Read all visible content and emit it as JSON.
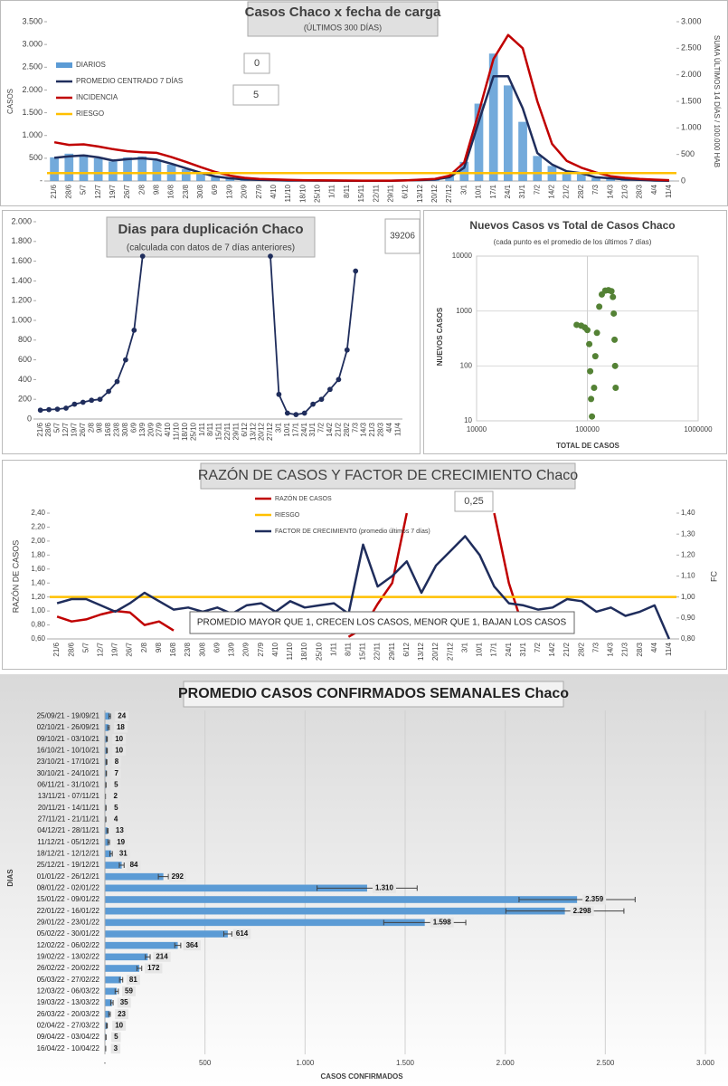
{
  "chart_data": [
    {
      "type": "combo",
      "title": "Casos Chaco x fecha de carga",
      "subtitle": "(ÚLTIMOS 300 DÍAS)",
      "y_label": "CASOS",
      "y2_label": "SUMA ÚLTIMOS 14 DÍAS / 100.000 HAB",
      "legend": "top-left",
      "categories": [
        "21/6",
        "28/6",
        "5/7",
        "12/7",
        "19/7",
        "26/7",
        "2/8",
        "9/8",
        "16/8",
        "23/8",
        "30/8",
        "6/9",
        "13/9",
        "20/9",
        "27/9",
        "4/10",
        "11/10",
        "18/10",
        "25/10",
        "1/11",
        "8/11",
        "15/11",
        "22/11",
        "29/11",
        "6/12",
        "13/12",
        "20/12",
        "27/12",
        "3/1",
        "10/1",
        "17/1",
        "24/1",
        "31/1",
        "7/2",
        "14/2",
        "21/2",
        "28/2",
        "7/3",
        "14/3",
        "21/3",
        "28/3",
        "4/4",
        "11/4"
      ],
      "series": [
        {
          "name": "DIARIOS",
          "kind": "bar",
          "color": "#5b9bd5",
          "values": [
            520,
            600,
            580,
            500,
            430,
            520,
            540,
            450,
            360,
            260,
            170,
            90,
            55,
            30,
            20,
            15,
            9,
            11,
            7,
            6,
            4,
            2,
            5,
            4,
            14,
            20,
            35,
            110,
            420,
            1700,
            2800,
            2100,
            1300,
            550,
            330,
            190,
            150,
            70,
            55,
            30,
            20,
            8,
            3
          ]
        },
        {
          "name": "PROMEDIO CENTRADO 7 DÍAS",
          "kind": "line",
          "color": "#1f2d5c",
          "values": [
            510,
            540,
            560,
            520,
            450,
            480,
            500,
            470,
            380,
            280,
            180,
            100,
            60,
            35,
            25,
            18,
            10,
            10,
            8,
            7,
            5,
            3,
            5,
            4,
            13,
            19,
            31,
            84,
            292,
            1310,
            2300,
            2300,
            1598,
            614,
            364,
            214,
            172,
            81,
            59,
            35,
            23,
            10,
            5
          ]
        },
        {
          "name": "INCIDENCIA",
          "kind": "line",
          "axis": "y2",
          "color": "#c00000",
          "values": [
            730,
            680,
            690,
            650,
            600,
            560,
            540,
            530,
            450,
            360,
            260,
            170,
            100,
            60,
            40,
            30,
            20,
            15,
            12,
            10,
            8,
            6,
            6,
            6,
            10,
            25,
            40,
            100,
            350,
            1300,
            2300,
            2750,
            2500,
            1500,
            700,
            380,
            250,
            160,
            90,
            60,
            40,
            25,
            15
          ]
        },
        {
          "name": "RIESGO",
          "kind": "hline",
          "axis": "y2",
          "color": "#ffc000",
          "value": 150
        }
      ],
      "ylim": [
        0,
        3500
      ],
      "yticks": [
        {
          "value": 0,
          "label": "-"
        },
        500,
        {
          "value": 1000,
          "label": "1.000"
        },
        {
          "value": 1500,
          "label": "1.500"
        },
        {
          "value": 2000,
          "label": "2.000"
        },
        {
          "value": 2500,
          "label": "2.500"
        },
        {
          "value": 3000,
          "label": "3.000"
        },
        {
          "value": 3500,
          "label": "3.500"
        }
      ],
      "y2lim": [
        0,
        3000
      ],
      "y2ticks": [
        0,
        500,
        {
          "value": 1000,
          "label": "1.000"
        },
        {
          "value": 1500,
          "label": "1.500"
        },
        {
          "value": 2000,
          "label": "2.000"
        },
        {
          "value": 2500,
          "label": "2.500"
        },
        {
          "value": 3000,
          "label": "3.000"
        }
      ],
      "annotations": [
        "0",
        "5"
      ]
    },
    {
      "type": "line",
      "title": "Dias para duplicación Chaco",
      "subtitle": "(calculada con datos de 7 días anteriores)",
      "categories": [
        "21/6",
        "28/6",
        "5/7",
        "12/7",
        "19/7",
        "26/7",
        "2/8",
        "9/8",
        "16/8",
        "23/8",
        "30/8",
        "6/9",
        "13/9",
        "20/9",
        "27/9",
        "4/10",
        "11/10",
        "18/10",
        "25/10",
        "1/11",
        "8/11",
        "15/11",
        "22/11",
        "29/11",
        "6/12",
        "13/12",
        "20/12",
        "27/12",
        "3/1",
        "10/1",
        "17/1",
        "24/1",
        "31/1",
        "7/2",
        "14/2",
        "21/2",
        "28/2",
        "7/3",
        "14/3",
        "21/3",
        "28/3",
        "4/4",
        "11/4"
      ],
      "series": [
        {
          "name": "DUPLICACIÓN",
          "kind": "line",
          "markers": true,
          "color": "#1f2d5c",
          "values": [
            90,
            95,
            100,
            110,
            150,
            170,
            190,
            200,
            280,
            380,
            600,
            900,
            1650,
            null,
            null,
            null,
            null,
            null,
            null,
            null,
            null,
            null,
            null,
            null,
            null,
            null,
            null,
            1650,
            250,
            60,
            45,
            60,
            150,
            200,
            300,
            400,
            700,
            1500,
            null,
            null,
            null,
            null,
            null
          ]
        }
      ],
      "ylim": [
        0,
        2000
      ],
      "yticks": [
        0,
        200,
        400,
        600,
        800,
        {
          "value": 1000,
          "label": "1.000"
        },
        {
          "value": 1200,
          "label": "1.200"
        },
        {
          "value": 1400,
          "label": "1.400"
        },
        {
          "value": 1600,
          "label": "1.600"
        },
        {
          "value": 1800,
          "label": "1.800"
        },
        {
          "value": 2000,
          "label": "2.000"
        }
      ],
      "annotations": [
        "39206"
      ]
    },
    {
      "type": "scatter",
      "title": "Nuevos Casos vs Total de Casos Chaco",
      "subtitle": "(cada punto es el promedio de los últimos 7 días)",
      "x_label": "TOTAL DE CASOS",
      "y_label": "NUEVOS CASOS",
      "xscale": "log",
      "yscale": "log",
      "grid": true,
      "color": "#548235",
      "x": [
        80000,
        88000,
        95000,
        100000,
        104000,
        106000,
        108000,
        110000,
        115000,
        118000,
        122000,
        128000,
        135000,
        145000,
        155000,
        165000,
        170000,
        173000,
        176000,
        178000,
        180000
      ],
      "values": [
        560,
        540,
        500,
        450,
        250,
        80,
        25,
        12,
        40,
        150,
        400,
        1200,
        2000,
        2350,
        2400,
        2300,
        1800,
        900,
        300,
        100,
        40
      ],
      "xlim": [
        10000,
        1000000
      ],
      "xticks": [
        10000,
        100000,
        1000000
      ],
      "ylim": [
        10,
        10000
      ],
      "yticks": [
        10,
        100,
        1000,
        10000
      ]
    },
    {
      "type": "line",
      "title": "RAZÓN DE CASOS Y FACTOR DE CRECIMIENTO Chaco",
      "y_label": "RAZÓN DE CASOS",
      "y2_label": "FC",
      "legend": "top-center",
      "categories": [
        "21/6",
        "28/6",
        "5/7",
        "12/7",
        "19/7",
        "26/7",
        "2/8",
        "9/8",
        "16/8",
        "23/8",
        "30/8",
        "6/9",
        "13/9",
        "20/9",
        "27/9",
        "4/10",
        "11/10",
        "18/10",
        "25/10",
        "1/11",
        "8/11",
        "15/11",
        "22/11",
        "29/11",
        "6/12",
        "13/12",
        "20/12",
        "27/12",
        "3/1",
        "10/1",
        "17/1",
        "24/1",
        "31/1",
        "7/2",
        "14/2",
        "21/2",
        "28/2",
        "7/3",
        "14/3",
        "21/3",
        "28/3",
        "4/4",
        "11/4"
      ],
      "series": [
        {
          "name": "RAZÓN DE CASOS",
          "kind": "line",
          "color": "#c00000",
          "values": [
            0.92,
            0.85,
            0.88,
            0.95,
            1.0,
            0.98,
            0.8,
            0.85,
            0.72,
            null,
            null,
            null,
            null,
            null,
            null,
            null,
            0.62,
            null,
            0.65,
            null,
            0.63,
            0.75,
            1.1,
            1.4,
            2.4,
            null,
            null,
            null,
            null,
            null,
            2.4,
            1.4,
            0.75,
            null,
            null,
            null,
            null,
            null,
            null,
            null,
            null,
            null,
            null
          ]
        },
        {
          "name": "RIESGO",
          "kind": "hline",
          "color": "#ffc000",
          "value": 1.2
        },
        {
          "name": "FACTOR DE CRECIMIENTO (promedio últimos 7 días)",
          "kind": "line",
          "axis": "y2",
          "color": "#1f2d5c",
          "values": [
            0.97,
            0.99,
            0.99,
            0.96,
            0.93,
            0.97,
            1.02,
            0.98,
            0.94,
            0.95,
            0.93,
            0.95,
            0.92,
            0.96,
            0.97,
            0.93,
            0.98,
            0.95,
            0.96,
            0.97,
            0.92,
            1.25,
            1.05,
            1.1,
            1.17,
            1.02,
            1.15,
            1.22,
            1.29,
            1.2,
            1.05,
            0.97,
            0.96,
            0.94,
            0.95,
            0.99,
            0.98,
            0.93,
            0.95,
            0.91,
            0.93,
            0.96,
            0.8
          ]
        }
      ],
      "ylim": [
        0.6,
        2.4
      ],
      "yticks": [
        {
          "value": 0.6,
          "label": "0,60"
        },
        {
          "value": 0.8,
          "label": "0,80"
        },
        {
          "value": 1.0,
          "label": "1,00"
        },
        {
          "value": 1.2,
          "label": "1,20"
        },
        {
          "value": 1.4,
          "label": "1,40"
        },
        {
          "value": 1.6,
          "label": "1,60"
        },
        {
          "value": 1.8,
          "label": "1,80"
        },
        {
          "value": 2.0,
          "label": "2,00"
        },
        {
          "value": 2.2,
          "label": "2,20"
        },
        {
          "value": 2.4,
          "label": "2,40"
        }
      ],
      "y2lim": [
        0.8,
        1.4
      ],
      "y2ticks": [
        {
          "value": 0.8,
          "label": "0,80"
        },
        {
          "value": 0.9,
          "label": "0,90"
        },
        {
          "value": 1.0,
          "label": "1,00"
        },
        {
          "value": 1.1,
          "label": "1,10"
        },
        {
          "value": 1.2,
          "label": "1,20"
        },
        {
          "value": 1.3,
          "label": "1,30"
        },
        {
          "value": 1.4,
          "label": "1,40"
        }
      ],
      "annotations": [
        "0,25",
        "PROMEDIO MAYOR QUE 1, CRECEN LOS CASOS, MENOR QUE 1, BAJAN LOS CASOS"
      ]
    },
    {
      "type": "bar",
      "orientation": "horizontal",
      "title": "PROMEDIO CASOS CONFIRMADOS SEMANALES Chaco",
      "x_label": "CASOS CONFIRMADOS",
      "y_label": "DIAS",
      "grid": true,
      "color": "#5b9bd5",
      "categories": [
        "25/09/21 - 19/09/21",
        "02/10/21 - 26/09/21",
        "09/10/21 - 03/10/21",
        "16/10/21 - 10/10/21",
        "23/10/21 - 17/10/21",
        "30/10/21 - 24/10/21",
        "06/11/21 - 31/10/21",
        "13/11/21 - 07/11/21",
        "20/11/21 - 14/11/21",
        "27/11/21 - 21/11/21",
        "04/12/21 - 28/11/21",
        "11/12/21 - 05/12/21",
        "18/12/21 - 12/12/21",
        "25/12/21 - 19/12/21",
        "01/01/22 - 26/12/21",
        "08/01/22 - 02/01/22",
        "15/01/22 - 09/01/22",
        "22/01/22 - 16/01/22",
        "29/01/22 - 23/01/22",
        "05/02/22 - 30/01/22",
        "12/02/22 - 06/02/22",
        "19/02/22 - 13/02/22",
        "26/02/22 - 20/02/22",
        "05/03/22 - 27/02/22",
        "12/03/22 - 06/03/22",
        "19/03/22 - 13/03/22",
        "26/03/22 - 20/03/22",
        "02/04/22 - 27/03/22",
        "09/04/22 - 03/04/22",
        "16/04/22 - 10/04/22"
      ],
      "values": [
        24,
        18,
        10,
        10,
        8,
        7,
        5,
        2,
        5,
        4,
        13,
        19,
        31,
        84,
        292,
        1310,
        2359,
        2298,
        1598,
        614,
        364,
        214,
        172,
        81,
        59,
        35,
        23,
        10,
        5,
        3
      ],
      "value_labels": [
        "24",
        "18",
        "10",
        "10",
        "8",
        "7",
        "5",
        "2",
        "5",
        "4",
        "13",
        "19",
        "31",
        "84",
        "292",
        "1.310",
        "2.359",
        "2.298",
        "1.598",
        "614",
        "364",
        "214",
        "172",
        "81",
        "59",
        "35",
        "23",
        "10",
        "5",
        "3"
      ],
      "errors": [
        4,
        4,
        2,
        2,
        2,
        1,
        1,
        1,
        1,
        1,
        3,
        4,
        6,
        12,
        25,
        250,
        290,
        295,
        205,
        20,
        15,
        12,
        12,
        8,
        8,
        6,
        4,
        2,
        1,
        1
      ],
      "xlim": [
        0,
        3000
      ],
      "xticks": [
        {
          "value": 0,
          "label": "-"
        },
        500,
        {
          "value": 1000,
          "label": "1.000"
        },
        {
          "value": 1500,
          "label": "1.500"
        },
        {
          "value": 2000,
          "label": "2.000"
        },
        {
          "value": 2500,
          "label": "2.500"
        },
        {
          "value": 3000,
          "label": "3.000"
        }
      ]
    }
  ]
}
